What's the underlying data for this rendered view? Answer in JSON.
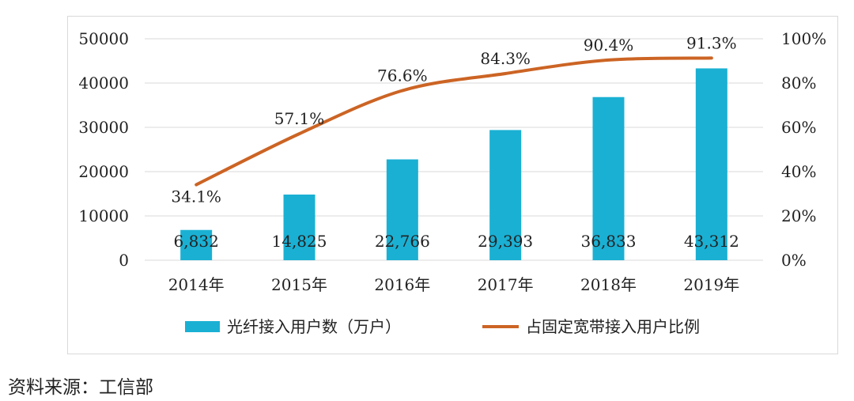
{
  "chart_data": {
    "type": "bar",
    "categories": [
      "2014年",
      "2015年",
      "2016年",
      "2017年",
      "2018年",
      "2019年"
    ],
    "series": [
      {
        "name": "光纤接入用户数（万户）",
        "type": "bar",
        "axis": "left",
        "color": "#1ab0d3",
        "values": [
          6832,
          14825,
          22766,
          29393,
          36833,
          43312
        ],
        "labels": [
          "6,832",
          "14,825",
          "22,766",
          "29,393",
          "36,833",
          "43,312"
        ]
      },
      {
        "name": "占固定宽带接入用户比例",
        "type": "line",
        "axis": "right",
        "color": "#cc6424",
        "values": [
          34.1,
          57.1,
          76.6,
          84.3,
          90.4,
          91.3
        ],
        "labels": [
          "34.1%",
          "57.1%",
          "76.6%",
          "84.3%",
          "90.4%",
          "91.3%"
        ]
      }
    ],
    "y_left": {
      "ylim": [
        0,
        50000
      ],
      "ticks": [
        "0",
        "10000",
        "20000",
        "30000",
        "40000",
        "50000"
      ]
    },
    "y_right": {
      "ylim": [
        0,
        100
      ],
      "ticks": [
        "0%",
        "20%",
        "40%",
        "60%",
        "80%",
        "100%"
      ]
    },
    "grid": true,
    "legend": "bottom"
  },
  "source_text": "资料来源：工信部",
  "colors": {
    "bar": "#1ab0d3",
    "line": "#cc6424",
    "grid": "#d9d9d9",
    "text": "#222222"
  }
}
